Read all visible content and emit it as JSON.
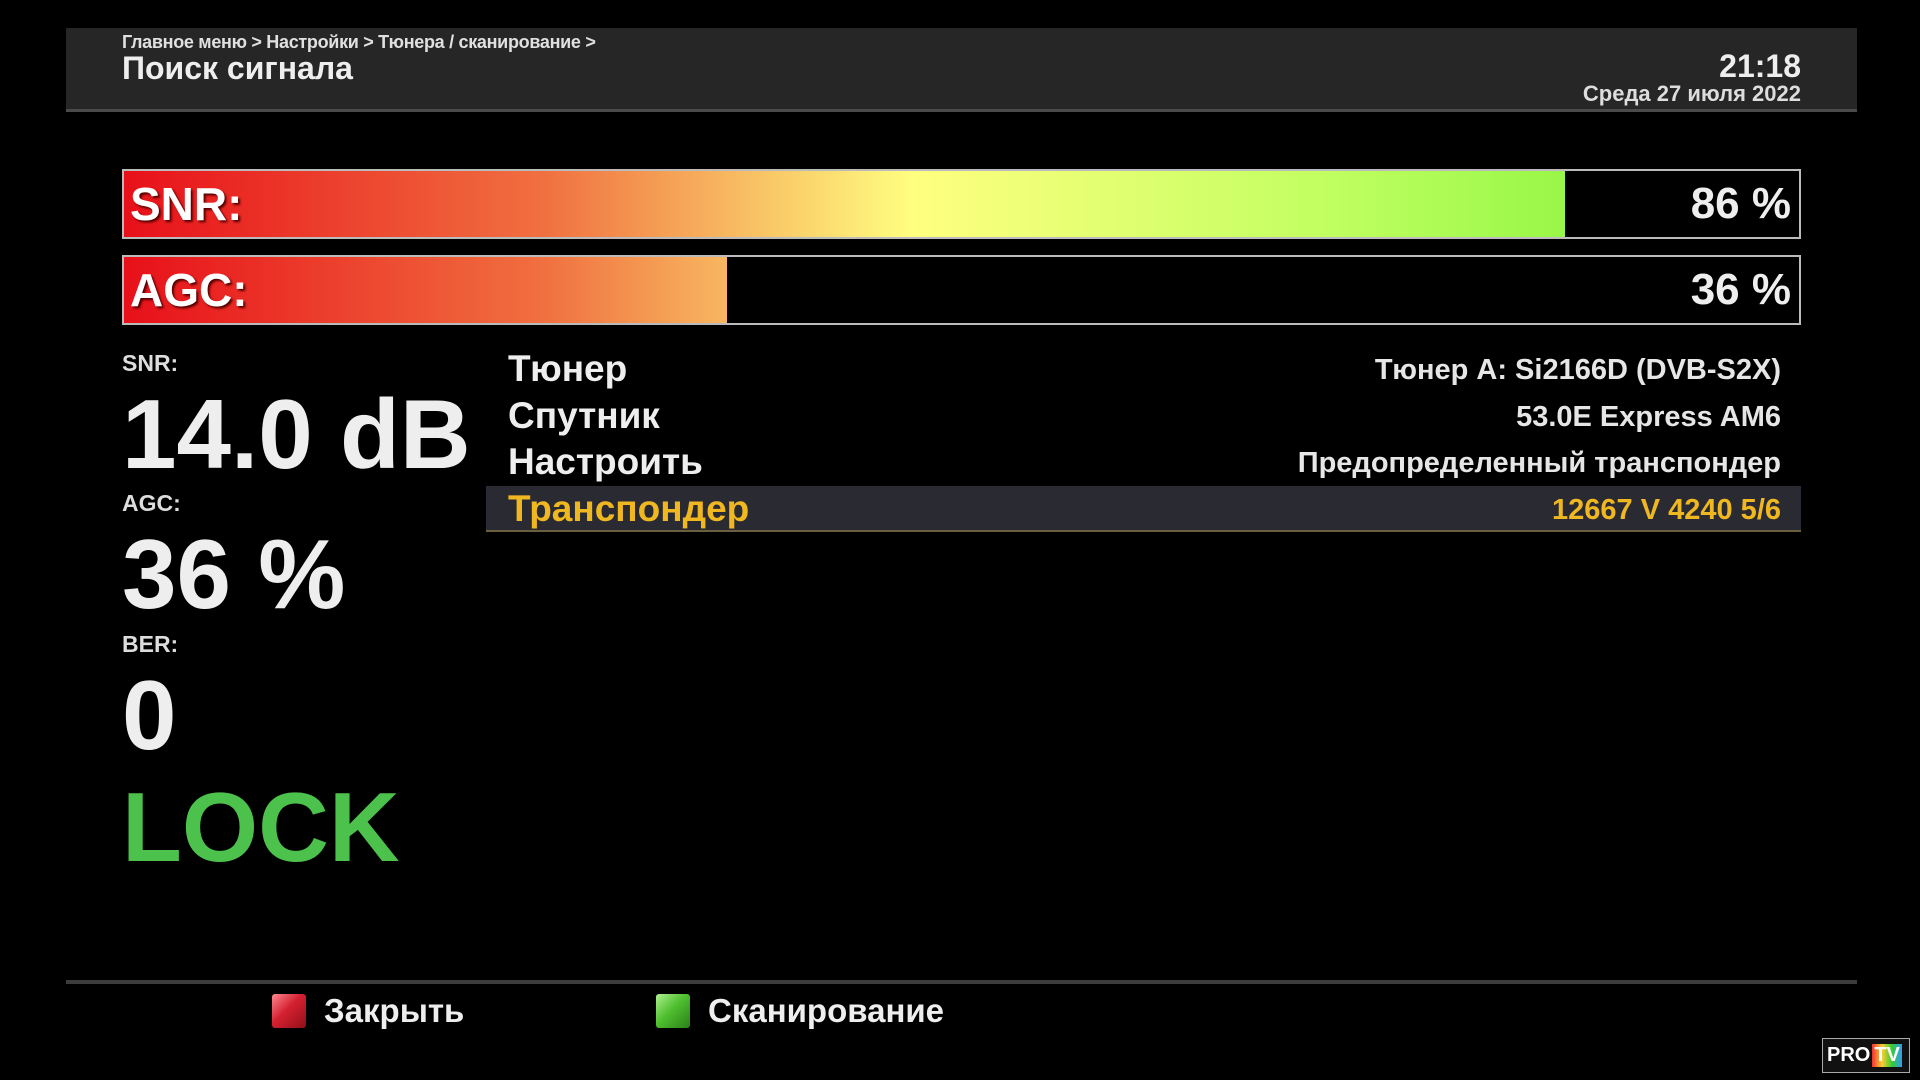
{
  "header": {
    "breadcrumb": "Главное меню > Настройки > Тюнера / сканирование >",
    "title": "Поиск сигнала",
    "time": "21:18",
    "date": "Среда 27 июля 2022"
  },
  "bars": [
    {
      "label": "SNR:",
      "value": "86 %",
      "percent": 86
    },
    {
      "label": "AGC:",
      "value": "36 %",
      "percent": 36
    }
  ],
  "stats": {
    "snr_label": "SNR:",
    "snr_value": "14.0 dB",
    "agc_label": "AGC:",
    "agc_value": "36 %",
    "ber_label": "BER:",
    "ber_value": "0",
    "status": "LOCK",
    "status_color": "#4cc24c"
  },
  "settings": [
    {
      "label": "Тюнер",
      "value": "Тюнер A: Si2166D (DVB-S2X)"
    },
    {
      "label": "Спутник",
      "value": "53.0E Express AM6"
    },
    {
      "label": "Настроить",
      "value": "Предопределенный транспондер"
    },
    {
      "label": "Транспондер",
      "value": "12667 V 4240 5/6",
      "selected": true
    }
  ],
  "footer": {
    "close_label": "Закрыть",
    "close_color": "#d42030",
    "scan_label": "Сканирование",
    "scan_color": "#50c030"
  },
  "watermark": {
    "text1": "PRO",
    "text2": "TV"
  }
}
